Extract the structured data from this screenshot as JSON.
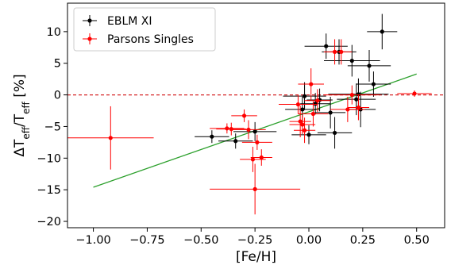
{
  "chart_data": {
    "type": "scatter",
    "xlabel": "[Fe/H]",
    "ylabel": {
      "prefix": "ΔT",
      "sub1": "eff",
      "mid": "/T",
      "sub2": "eff",
      "suffix": " [%]"
    },
    "xlim": [
      -1.12,
      0.63
    ],
    "ylim": [
      -21,
      14.5
    ],
    "xticks": [
      -1.0,
      -0.75,
      -0.5,
      -0.25,
      0.0,
      0.25,
      0.5
    ],
    "xtick_labels": [
      "−1.00",
      "−0.75",
      "−0.50",
      "−0.25",
      "0.00",
      "0.25",
      "0.50"
    ],
    "yticks": [
      -20,
      -15,
      -10,
      -5,
      0,
      5,
      10
    ],
    "ytick_labels": [
      "−20",
      "−15",
      "−10",
      "−5",
      "0",
      "5",
      "10"
    ],
    "grid": false,
    "legend_position": "top-left",
    "reference_line": {
      "y": 0,
      "color": "#d62728",
      "style": "dashed"
    },
    "fit_line": {
      "x": [
        -1.0,
        0.5
      ],
      "y": [
        -14.6,
        3.3
      ],
      "color": "#2ca02c"
    },
    "series": [
      {
        "name": "EBLM XI",
        "color": "#000000",
        "points": [
          {
            "x": -0.45,
            "y": -6.6,
            "xerr": 0.08,
            "yerr": 1.0
          },
          {
            "x": -0.34,
            "y": -7.3,
            "xerr": 0.08,
            "yerr": 1.2
          },
          {
            "x": -0.25,
            "y": -5.8,
            "xerr": 0.1,
            "yerr": 1.5
          },
          {
            "x": -0.02,
            "y": -0.2,
            "xerr": 0.1,
            "yerr": 2.2
          },
          {
            "x": -0.03,
            "y": -2.3,
            "xerr": 0.08,
            "yerr": 2.0
          },
          {
            "x": 0.0,
            "y": -6.3,
            "xerr": 0.08,
            "yerr": 1.5
          },
          {
            "x": 0.03,
            "y": -1.4,
            "xerr": 0.07,
            "yerr": 1.7
          },
          {
            "x": 0.05,
            "y": -0.8,
            "xerr": 0.06,
            "yerr": 1.8
          },
          {
            "x": 0.08,
            "y": 7.7,
            "xerr": 0.1,
            "yerr": 2.0
          },
          {
            "x": 0.1,
            "y": -2.8,
            "xerr": 0.07,
            "yerr": 2.5
          },
          {
            "x": 0.12,
            "y": -6.0,
            "xerr": 0.08,
            "yerr": 2.5
          },
          {
            "x": 0.14,
            "y": 6.8,
            "xerr": 0.08,
            "yerr": 2.0
          },
          {
            "x": 0.2,
            "y": 5.4,
            "xerr": 0.13,
            "yerr": 2.5
          },
          {
            "x": 0.22,
            "y": -0.7,
            "xerr": 0.09,
            "yerr": 2.5
          },
          {
            "x": 0.23,
            "y": 0.1,
            "xerr": 0.14,
            "yerr": 2.5
          },
          {
            "x": 0.24,
            "y": -2.3,
            "xerr": 0.07,
            "yerr": 2.8
          },
          {
            "x": 0.28,
            "y": 4.6,
            "xerr": 0.1,
            "yerr": 2.5
          },
          {
            "x": 0.3,
            "y": 1.7,
            "xerr": 0.08,
            "yerr": 2.0
          },
          {
            "x": 0.34,
            "y": 10.0,
            "xerr": 0.07,
            "yerr": 2.8
          }
        ]
      },
      {
        "name": "Parsons Singles",
        "color": "#ff0000",
        "points": [
          {
            "x": -0.92,
            "y": -6.8,
            "xerr": 0.2,
            "yerr": 5.0
          },
          {
            "x": -0.38,
            "y": -5.3,
            "xerr": 0.08,
            "yerr": 0.8
          },
          {
            "x": -0.36,
            "y": -5.4,
            "xerr": 0.07,
            "yerr": 1.0
          },
          {
            "x": -0.3,
            "y": -3.3,
            "xerr": 0.06,
            "yerr": 1.0
          },
          {
            "x": -0.28,
            "y": -5.5,
            "xerr": 0.08,
            "yerr": 1.5
          },
          {
            "x": -0.26,
            "y": -10.2,
            "xerr": 0.06,
            "yerr": 2.0
          },
          {
            "x": -0.25,
            "y": -14.9,
            "xerr": 0.21,
            "yerr": 4.0
          },
          {
            "x": -0.24,
            "y": -7.5,
            "xerr": 0.07,
            "yerr": 1.2
          },
          {
            "x": -0.22,
            "y": -9.9,
            "xerr": 0.05,
            "yerr": 1.3
          },
          {
            "x": -0.05,
            "y": -1.5,
            "xerr": 0.09,
            "yerr": 1.5
          },
          {
            "x": -0.04,
            "y": -4.2,
            "xerr": 0.05,
            "yerr": 2.5
          },
          {
            "x": -0.03,
            "y": -4.7,
            "xerr": 0.06,
            "yerr": 1.5
          },
          {
            "x": -0.02,
            "y": -5.6,
            "xerr": 0.05,
            "yerr": 2.0
          },
          {
            "x": 0.01,
            "y": 1.7,
            "xerr": 0.06,
            "yerr": 2.5
          },
          {
            "x": 0.02,
            "y": -3.0,
            "xerr": 0.07,
            "yerr": 2.0
          },
          {
            "x": 0.04,
            "y": -0.9,
            "xerr": 0.06,
            "yerr": 1.8
          },
          {
            "x": 0.12,
            "y": 6.8,
            "xerr": 0.05,
            "yerr": 2.0
          },
          {
            "x": 0.15,
            "y": 6.8,
            "xerr": 0.05,
            "yerr": 2.0
          },
          {
            "x": 0.18,
            "y": -2.3,
            "xerr": 0.08,
            "yerr": 2.0
          },
          {
            "x": 0.2,
            "y": 0.0,
            "xerr": 0.13,
            "yerr": 1.5
          },
          {
            "x": 0.23,
            "y": -2.0,
            "xerr": 0.05,
            "yerr": 2.0
          },
          {
            "x": 0.49,
            "y": 0.2,
            "xerr": 0.08,
            "yerr": 0.5
          }
        ]
      }
    ]
  }
}
